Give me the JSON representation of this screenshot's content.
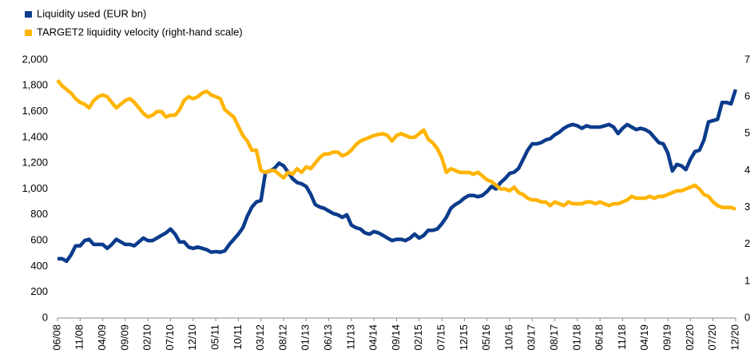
{
  "chart_data": {
    "type": "line",
    "categories": [
      "06/08",
      null,
      null,
      null,
      null,
      "11/08",
      null,
      null,
      null,
      null,
      "04/09",
      null,
      null,
      null,
      null,
      "09/09",
      null,
      null,
      null,
      null,
      "02/10",
      null,
      null,
      null,
      null,
      "07/10",
      null,
      null,
      null,
      null,
      "12/10",
      null,
      null,
      null,
      null,
      "05/11",
      null,
      null,
      null,
      null,
      "10/11",
      null,
      null,
      null,
      null,
      "03/12",
      null,
      null,
      null,
      null,
      "08/12",
      null,
      null,
      null,
      null,
      "01/13",
      null,
      null,
      null,
      null,
      "06/13",
      null,
      null,
      null,
      null,
      "11/13",
      null,
      null,
      null,
      null,
      "04/14",
      null,
      null,
      null,
      null,
      "09/14",
      null,
      null,
      null,
      null,
      "02/15",
      null,
      null,
      null,
      null,
      "07/15",
      null,
      null,
      null,
      null,
      "12/15",
      null,
      null,
      null,
      null,
      "05/16",
      null,
      null,
      null,
      null,
      "10/16",
      null,
      null,
      null,
      null,
      "03/17",
      null,
      null,
      null,
      null,
      "08/17",
      null,
      null,
      null,
      null,
      "01/18",
      null,
      null,
      null,
      null,
      "06/18",
      null,
      null,
      null,
      null,
      "11/18",
      null,
      null,
      null,
      null,
      "04/19",
      null,
      null,
      null,
      null,
      "09/19",
      null,
      null,
      null,
      null,
      "02/20",
      null,
      null,
      null,
      null,
      "07/20",
      null,
      null,
      null,
      null,
      "12/20"
    ],
    "series": [
      {
        "name": "Liquidity used (EUR bn)",
        "color": "#0b3b8c",
        "axis": "y",
        "values": [
          460,
          460,
          440,
          490,
          560,
          560,
          600,
          610,
          570,
          570,
          570,
          540,
          570,
          610,
          590,
          570,
          570,
          560,
          590,
          620,
          600,
          600,
          620,
          640,
          660,
          690,
          650,
          590,
          590,
          550,
          540,
          550,
          540,
          530,
          510,
          515,
          510,
          520,
          570,
          610,
          650,
          700,
          790,
          860,
          900,
          910,
          1130,
          1140,
          1160,
          1200,
          1180,
          1130,
          1080,
          1050,
          1040,
          1020,
          960,
          880,
          860,
          850,
          830,
          810,
          800,
          780,
          800,
          720,
          700,
          690,
          660,
          650,
          670,
          660,
          640,
          620,
          600,
          610,
          610,
          600,
          620,
          650,
          620,
          640,
          680,
          680,
          690,
          730,
          780,
          850,
          880,
          900,
          930,
          950,
          950,
          940,
          950,
          980,
          1020,
          1000,
          1050,
          1080,
          1120,
          1130,
          1160,
          1230,
          1300,
          1350,
          1350,
          1360,
          1380,
          1390,
          1420,
          1440,
          1470,
          1490,
          1500,
          1490,
          1470,
          1490,
          1480,
          1480,
          1480,
          1490,
          1500,
          1480,
          1430,
          1470,
          1500,
          1480,
          1460,
          1470,
          1460,
          1440,
          1400,
          1360,
          1350,
          1280,
          1140,
          1190,
          1180,
          1150,
          1230,
          1290,
          1300,
          1380,
          1520,
          1530,
          1540,
          1670,
          1670,
          1660,
          1770
        ]
      },
      {
        "name": "TARGET2 liquidity velocity (right-hand scale)",
        "color": "#ffb400",
        "axis": "y2",
        "values": [
          6.45,
          6.3,
          6.2,
          6.1,
          5.95,
          5.85,
          5.8,
          5.7,
          5.9,
          6.0,
          6.05,
          6.0,
          5.85,
          5.7,
          5.8,
          5.9,
          5.95,
          5.85,
          5.7,
          5.55,
          5.45,
          5.5,
          5.6,
          5.6,
          5.45,
          5.5,
          5.5,
          5.65,
          5.9,
          6.0,
          5.95,
          6.0,
          6.1,
          6.15,
          6.05,
          6.0,
          5.95,
          5.65,
          5.55,
          5.45,
          5.2,
          4.95,
          4.8,
          4.55,
          4.55,
          4.0,
          3.95,
          4.0,
          4.0,
          3.9,
          3.8,
          3.95,
          3.9,
          4.05,
          3.95,
          4.1,
          4.05,
          4.2,
          4.35,
          4.45,
          4.45,
          4.5,
          4.5,
          4.4,
          4.45,
          4.55,
          4.7,
          4.8,
          4.85,
          4.9,
          4.95,
          4.98,
          5.0,
          4.95,
          4.8,
          4.95,
          5.0,
          4.95,
          4.9,
          4.9,
          5.0,
          5.1,
          4.85,
          4.75,
          4.6,
          4.35,
          3.95,
          4.05,
          4.0,
          3.95,
          3.95,
          3.95,
          3.9,
          3.95,
          3.85,
          3.75,
          3.7,
          3.6,
          3.5,
          3.5,
          3.45,
          3.55,
          3.4,
          3.35,
          3.25,
          3.2,
          3.2,
          3.15,
          3.15,
          3.05,
          3.15,
          3.1,
          3.05,
          3.15,
          3.1,
          3.1,
          3.1,
          3.15,
          3.15,
          3.1,
          3.15,
          3.1,
          3.05,
          3.1,
          3.1,
          3.15,
          3.2,
          3.3,
          3.25,
          3.25,
          3.25,
          3.3,
          3.25,
          3.3,
          3.3,
          3.35,
          3.4,
          3.45,
          3.45,
          3.5,
          3.55,
          3.6,
          3.5,
          3.35,
          3.3,
          3.15,
          3.05,
          3.0,
          3.0,
          3.0,
          2.95
        ]
      }
    ],
    "ylim": [
      0,
      2000
    ],
    "yticks": [
      0,
      200,
      400,
      600,
      800,
      {
        "value": 1000,
        "label": "1,000"
      },
      {
        "value": 1200,
        "label": "1,200"
      },
      {
        "value": 1400,
        "label": "1,400"
      },
      {
        "value": 1600,
        "label": "1,600"
      },
      {
        "value": 1800,
        "label": "1,800"
      },
      {
        "value": 2000,
        "label": "2,000"
      }
    ],
    "y2lim": [
      0,
      7
    ],
    "y2ticks": [
      0,
      1,
      2,
      3,
      4,
      5,
      6,
      7
    ],
    "grid": false,
    "legend": "top-left"
  }
}
